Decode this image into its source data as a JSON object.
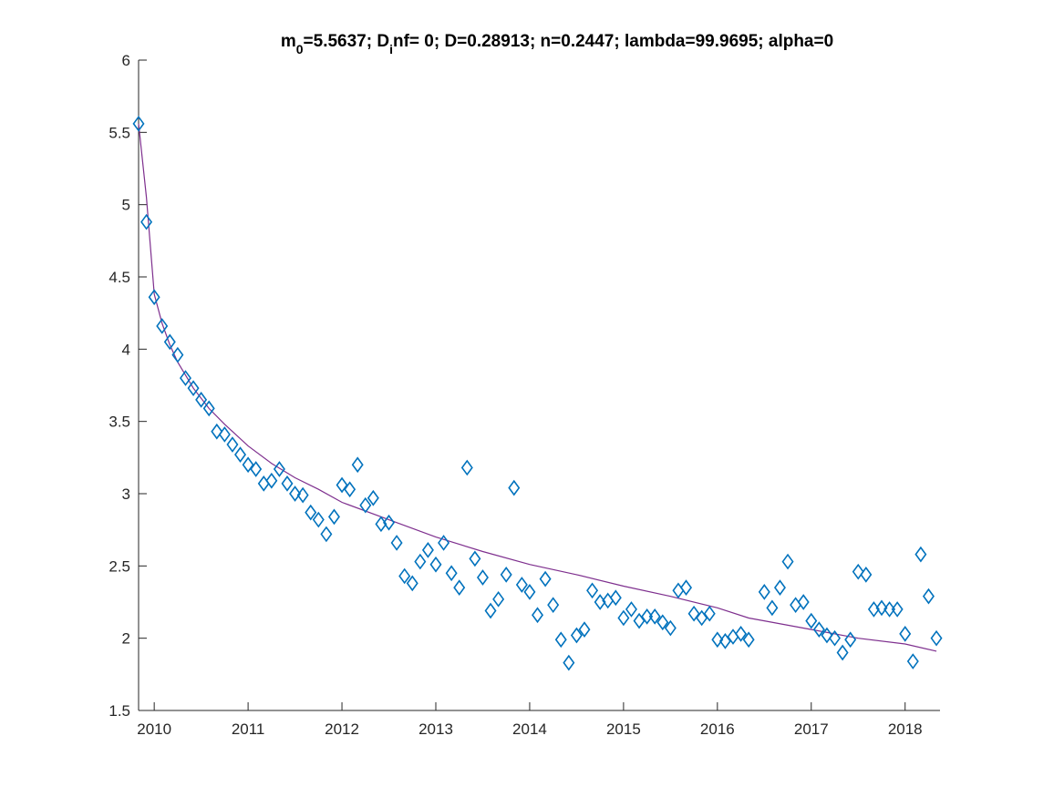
{
  "chart_data": {
    "type": "scatter",
    "title": {
      "parts": [
        {
          "text": "m",
          "sub": false
        },
        {
          "text": "0",
          "sub": true
        },
        {
          "text": "=5.5637; D",
          "sub": false
        },
        {
          "text": "i",
          "sub": true
        },
        {
          "text": "nf= 0; D=0.28913; n=0.2447; lambda=99.9695; alpha=0",
          "sub": false
        }
      ]
    },
    "xlabel": "",
    "ylabel": "",
    "xlim": [
      "2009-11-01",
      "2018-05-15"
    ],
    "ylim": [
      1.5,
      6
    ],
    "x_ticks": [
      "2010",
      "2011",
      "2012",
      "2013",
      "2014",
      "2015",
      "2016",
      "2017",
      "2018"
    ],
    "y_ticks": [
      "1.5",
      "2",
      "2.5",
      "3",
      "3.5",
      "4",
      "4.5",
      "5",
      "5.5",
      "6"
    ],
    "grid": false,
    "legend": "none",
    "colors": {
      "observed": "#0072BD",
      "fit": "#7E2F8E",
      "axis": "#262626"
    },
    "series": [
      {
        "kind": "markers",
        "marker": "diamond",
        "points": [
          [
            "2009-11",
            5.56
          ],
          [
            "2009-12",
            4.88
          ],
          [
            "2010-01",
            4.36
          ],
          [
            "2010-02",
            4.16
          ],
          [
            "2010-03",
            4.05
          ],
          [
            "2010-04",
            3.96
          ],
          [
            "2010-05",
            3.8
          ],
          [
            "2010-06",
            3.73
          ],
          [
            "2010-07",
            3.65
          ],
          [
            "2010-08",
            3.59
          ],
          [
            "2010-09",
            3.43
          ],
          [
            "2010-10",
            3.41
          ],
          [
            "2010-11",
            3.34
          ],
          [
            "2010-12",
            3.27
          ],
          [
            "2011-01",
            3.2
          ],
          [
            "2011-02",
            3.17
          ],
          [
            "2011-03",
            3.07
          ],
          [
            "2011-04",
            3.09
          ],
          [
            "2011-05",
            3.17
          ],
          [
            "2011-06",
            3.07
          ],
          [
            "2011-07",
            3.0
          ],
          [
            "2011-08",
            2.99
          ],
          [
            "2011-09",
            2.87
          ],
          [
            "2011-10",
            2.82
          ],
          [
            "2011-11",
            2.72
          ],
          [
            "2011-12",
            2.84
          ],
          [
            "2012-01",
            3.06
          ],
          [
            "2012-02",
            3.03
          ],
          [
            "2012-03",
            3.2
          ],
          [
            "2012-04",
            2.92
          ],
          [
            "2012-05",
            2.97
          ],
          [
            "2012-06",
            2.79
          ],
          [
            "2012-07",
            2.8
          ],
          [
            "2012-08",
            2.66
          ],
          [
            "2012-09",
            2.43
          ],
          [
            "2012-10",
            2.38
          ],
          [
            "2012-11",
            2.53
          ],
          [
            "2012-12",
            2.61
          ],
          [
            "2013-01",
            2.51
          ],
          [
            "2013-02",
            2.66
          ],
          [
            "2013-03",
            2.45
          ],
          [
            "2013-04",
            2.35
          ],
          [
            "2013-05",
            3.18
          ],
          [
            "2013-06",
            2.55
          ],
          [
            "2013-07",
            2.42
          ],
          [
            "2013-08",
            2.19
          ],
          [
            "2013-09",
            2.27
          ],
          [
            "2013-10",
            2.44
          ],
          [
            "2013-11",
            3.04
          ],
          [
            "2013-12",
            2.37
          ],
          [
            "2014-01",
            2.32
          ],
          [
            "2014-02",
            2.16
          ],
          [
            "2014-03",
            2.41
          ],
          [
            "2014-04",
            2.23
          ],
          [
            "2014-05",
            1.99
          ],
          [
            "2014-06",
            1.83
          ],
          [
            "2014-07",
            2.02
          ],
          [
            "2014-08",
            2.06
          ],
          [
            "2014-09",
            2.33
          ],
          [
            "2014-10",
            2.25
          ],
          [
            "2014-11",
            2.26
          ],
          [
            "2014-12",
            2.28
          ],
          [
            "2015-01",
            2.14
          ],
          [
            "2015-02",
            2.2
          ],
          [
            "2015-03",
            2.12
          ],
          [
            "2015-04",
            2.15
          ],
          [
            "2015-05",
            2.15
          ],
          [
            "2015-06",
            2.11
          ],
          [
            "2015-07",
            2.07
          ],
          [
            "2015-08",
            2.33
          ],
          [
            "2015-09",
            2.35
          ],
          [
            "2015-10",
            2.17
          ],
          [
            "2015-11",
            2.14
          ],
          [
            "2015-12",
            2.17
          ],
          [
            "2016-01",
            1.99
          ],
          [
            "2016-02",
            1.98
          ],
          [
            "2016-03",
            2.01
          ],
          [
            "2016-04",
            2.03
          ],
          [
            "2016-05",
            1.99
          ],
          [
            "2016-07",
            2.32
          ],
          [
            "2016-08",
            2.21
          ],
          [
            "2016-09",
            2.35
          ],
          [
            "2016-10",
            2.53
          ],
          [
            "2016-11",
            2.23
          ],
          [
            "2016-12",
            2.25
          ],
          [
            "2017-01",
            2.12
          ],
          [
            "2017-02",
            2.06
          ],
          [
            "2017-03",
            2.02
          ],
          [
            "2017-04",
            2.0
          ],
          [
            "2017-05",
            1.9
          ],
          [
            "2017-06",
            1.99
          ],
          [
            "2017-07",
            2.46
          ],
          [
            "2017-08",
            2.44
          ],
          [
            "2017-09",
            2.2
          ],
          [
            "2017-10",
            2.21
          ],
          [
            "2017-11",
            2.2
          ],
          [
            "2017-12",
            2.2
          ],
          [
            "2018-01",
            2.03
          ],
          [
            "2018-02",
            1.84
          ],
          [
            "2018-03",
            2.58
          ],
          [
            "2018-04",
            2.29
          ],
          [
            "2018-05",
            2.0
          ]
        ]
      },
      {
        "kind": "line",
        "points": [
          [
            "2009-11",
            5.56
          ],
          [
            "2009-12",
            5.05
          ],
          [
            "2010-01",
            4.38
          ],
          [
            "2010-02",
            4.18
          ],
          [
            "2010-03",
            4.03
          ],
          [
            "2010-04",
            3.91
          ],
          [
            "2010-06",
            3.73
          ],
          [
            "2010-08",
            3.59
          ],
          [
            "2010-10",
            3.48
          ],
          [
            "2011-01",
            3.33
          ],
          [
            "2011-04",
            3.21
          ],
          [
            "2011-07",
            3.11
          ],
          [
            "2011-10",
            3.03
          ],
          [
            "2012-01",
            2.94
          ],
          [
            "2012-07",
            2.82
          ],
          [
            "2013-01",
            2.7
          ],
          [
            "2013-07",
            2.6
          ],
          [
            "2014-01",
            2.51
          ],
          [
            "2014-07",
            2.44
          ],
          [
            "2015-01",
            2.36
          ],
          [
            "2015-07",
            2.29
          ],
          [
            "2016-01",
            2.21
          ],
          [
            "2016-05",
            2.14
          ],
          [
            "2016-07",
            2.12
          ],
          [
            "2017-01",
            2.06
          ],
          [
            "2017-07",
            2.0
          ],
          [
            "2018-01",
            1.96
          ],
          [
            "2018-05",
            1.91
          ]
        ]
      }
    ]
  }
}
